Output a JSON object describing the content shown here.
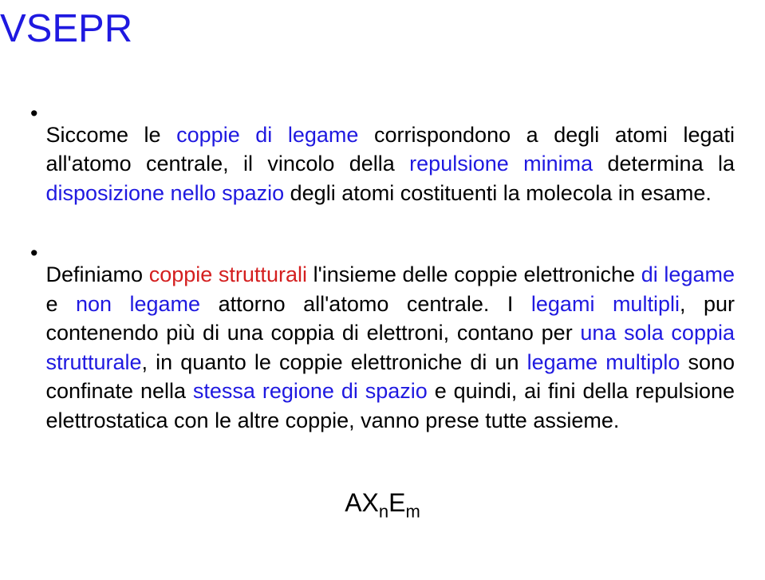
{
  "title": "VSEPR",
  "bullets": [
    {
      "runs": [
        {
          "t": "Siccome le ",
          "c": "black"
        },
        {
          "t": "coppie di legame",
          "c": "blue"
        },
        {
          "t": " corrispondono a degli atomi legati all'atomo centrale, il vincolo della ",
          "c": "black"
        },
        {
          "t": "repulsione minima",
          "c": "blue"
        },
        {
          "t": " determina la ",
          "c": "black"
        },
        {
          "t": "disposizione nello spazio",
          "c": "blue"
        },
        {
          "t": " degli atomi costituenti la molecola in esame.",
          "c": "black"
        }
      ]
    },
    {
      "runs": [
        {
          "t": "Definiamo ",
          "c": "black"
        },
        {
          "t": "coppie strutturali",
          "c": "red"
        },
        {
          "t": " l'insieme delle coppie elettroniche ",
          "c": "black"
        },
        {
          "t": "di legame",
          "c": "blue"
        },
        {
          "t": " e ",
          "c": "black"
        },
        {
          "t": "non legame",
          "c": "blue"
        },
        {
          "t": " attorno all'atomo centrale. I ",
          "c": "black"
        },
        {
          "t": "legami multipli",
          "c": "blue"
        },
        {
          "t": ", pur contenendo più di una coppia di elettroni, contano per ",
          "c": "black"
        },
        {
          "t": "una sola coppia strutturale",
          "c": "blue"
        },
        {
          "t": ", in quanto le coppie elettroniche di un ",
          "c": "black"
        },
        {
          "t": "legame multiplo",
          "c": "blue"
        },
        {
          "t": " sono confinate nella ",
          "c": "black"
        },
        {
          "t": "stessa regione di spazio",
          "c": "blue"
        },
        {
          "t": " e quindi, ai fini della repulsione elettrostatica con le altre coppie, vanno prese tutte assieme.",
          "c": "black"
        }
      ]
    }
  ],
  "formula_parts": [
    "AX",
    "n",
    "E",
    "m"
  ]
}
